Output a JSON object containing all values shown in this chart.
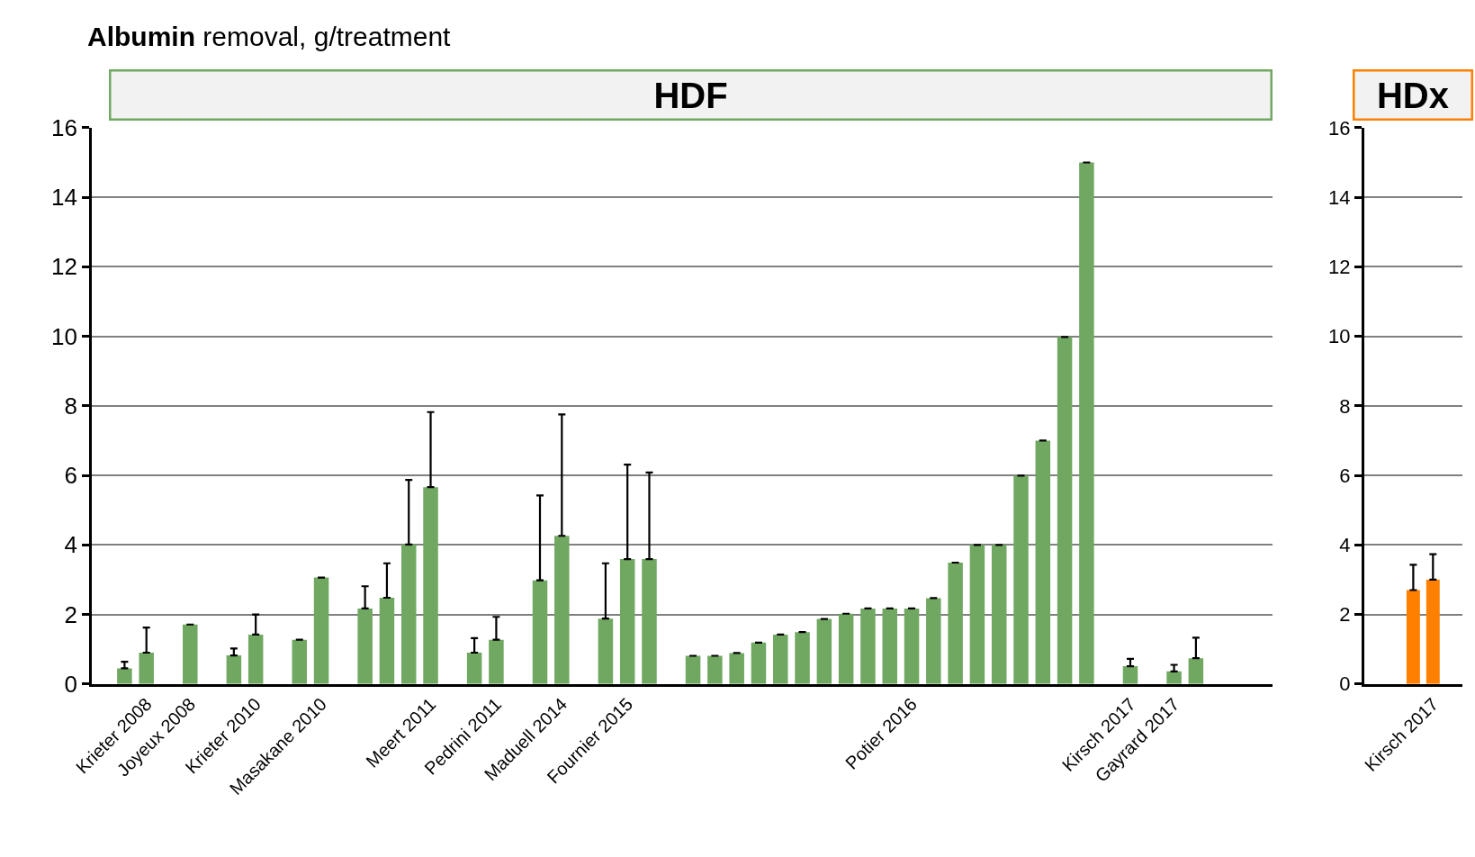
{
  "chart_data": [
    {
      "type": "bar",
      "title": "HDF",
      "ylabel": "Albumin removal, g/treatment",
      "color": "#70a862",
      "categories": [
        null,
        null,
        "Krieter 2008",
        null,
        "Joyeux 2008",
        null,
        null,
        "Krieter 2010",
        null,
        null,
        "Masakane 2010",
        null,
        null,
        null,
        null,
        "Meert 2011",
        null,
        null,
        "Pedrini 2011",
        null,
        null,
        "Maduell 2014",
        null,
        null,
        "Fournier 2015",
        null,
        null,
        null,
        null,
        null,
        null,
        null,
        null,
        null,
        null,
        null,
        null,
        "Potier 2016",
        null,
        null,
        null,
        null,
        null,
        null,
        null,
        null,
        null,
        "Kirsch 2017",
        null,
        "Gayrard 2017",
        null,
        null,
        null,
        null
      ],
      "values": [
        null,
        0.45,
        0.9,
        null,
        1.71,
        null,
        0.82,
        1.42,
        null,
        1.27,
        3.06,
        null,
        2.17,
        2.48,
        4.01,
        5.66,
        null,
        0.9,
        1.27,
        null,
        2.98,
        4.26,
        null,
        1.88,
        3.59,
        3.59,
        null,
        0.81,
        0.81,
        0.89,
        1.19,
        1.42,
        1.49,
        1.87,
        2.02,
        2.17,
        2.17,
        2.17,
        2.47,
        3.49,
        4.0,
        4.0,
        5.99,
        7.0,
        9.98,
        15.0,
        null,
        0.51,
        null,
        0.36,
        0.74,
        null,
        null,
        null
      ],
      "errors": [
        null,
        [
          0.45,
          0.64
        ],
        [
          0.9,
          1.62
        ],
        null,
        null,
        null,
        [
          0.82,
          1.02
        ],
        [
          1.42,
          2.0
        ],
        null,
        null,
        null,
        null,
        [
          2.17,
          2.81
        ],
        [
          2.48,
          3.47
        ],
        [
          4.01,
          5.87
        ],
        [
          5.66,
          7.82
        ],
        null,
        [
          0.9,
          1.32
        ],
        [
          1.27,
          1.93
        ],
        null,
        [
          2.98,
          5.42
        ],
        [
          4.26,
          7.75
        ],
        null,
        [
          1.88,
          3.47
        ],
        [
          3.59,
          6.31
        ],
        [
          3.59,
          6.08
        ],
        null,
        null,
        null,
        null,
        null,
        null,
        null,
        null,
        null,
        null,
        null,
        null,
        null,
        null,
        null,
        null,
        null,
        null,
        null,
        null,
        null,
        [
          0.51,
          0.72
        ],
        null,
        [
          0.36,
          0.55
        ],
        [
          0.74,
          1.33
        ],
        null,
        null,
        null
      ],
      "ylim": [
        0,
        16
      ],
      "yticks": [
        0,
        2,
        4,
        6,
        8,
        10,
        12,
        14,
        16
      ],
      "grid": "y"
    },
    {
      "type": "bar",
      "title": "HDx",
      "color": "#ff8000",
      "categories": [
        null,
        null,
        null,
        "Kirsch 2017",
        null
      ],
      "values": [
        null,
        null,
        2.7,
        3.0,
        null
      ],
      "errors": [
        null,
        null,
        [
          2.7,
          3.43
        ],
        [
          3.0,
          3.73
        ],
        null
      ],
      "ylim": [
        0,
        16
      ],
      "yticks": [
        0,
        2,
        4,
        6,
        8,
        10,
        12,
        14,
        16
      ],
      "grid": "y"
    }
  ]
}
